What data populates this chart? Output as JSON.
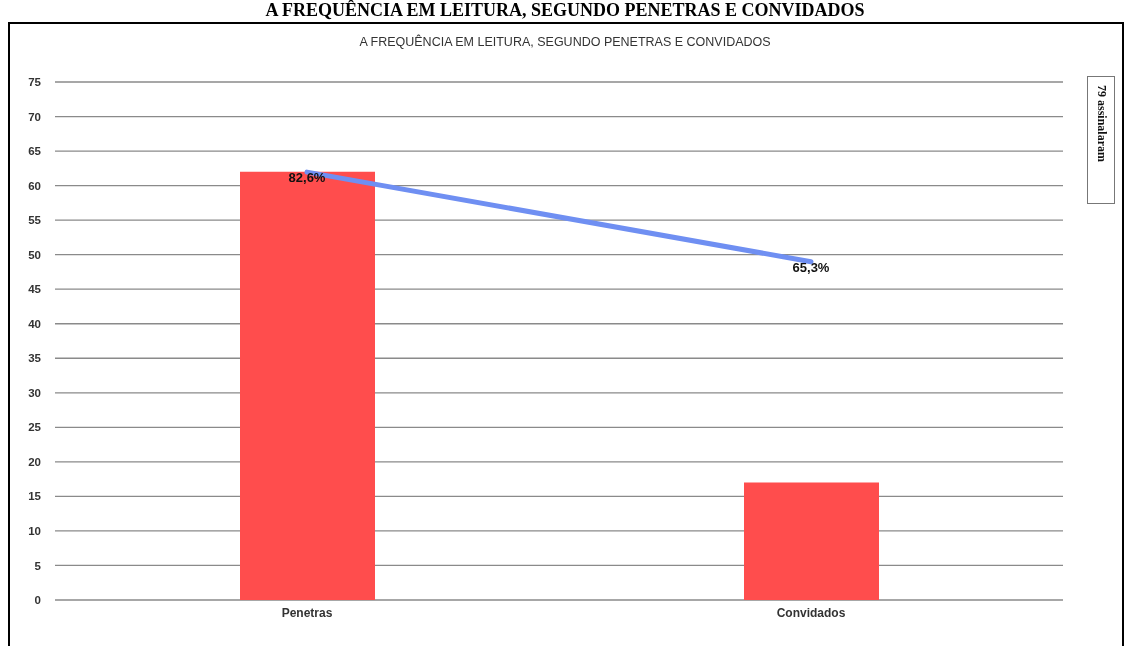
{
  "chart_data": {
    "type": "bar",
    "title": "A FREQUÊNCIA EM LEITURA, SEGUNDO PENETRAS E CONVIDADOS",
    "annotations": [
      "A FREQUÊNCIA EM LEITURA, SEGUNDO PENETRAS E CONVIDADOS",
      "79 assinalaram"
    ],
    "categories": [
      "Penetras",
      "Convidados"
    ],
    "series": [
      {
        "color": "#ff4d4d",
        "values": [
          62,
          17
        ]
      },
      {
        "type": "line",
        "axis": "y2",
        "color": "#6f8ff2",
        "values": [
          82.6,
          65.3
        ],
        "value_labels": [
          "82,6%",
          "65,3%"
        ]
      }
    ],
    "ylim": [
      0,
      75
    ],
    "yticks": [
      0,
      5,
      10,
      15,
      20,
      25,
      30,
      35,
      40,
      45,
      50,
      55,
      60,
      65,
      70,
      75
    ],
    "y2lim": [
      0,
      100
    ],
    "grid": "y"
  }
}
